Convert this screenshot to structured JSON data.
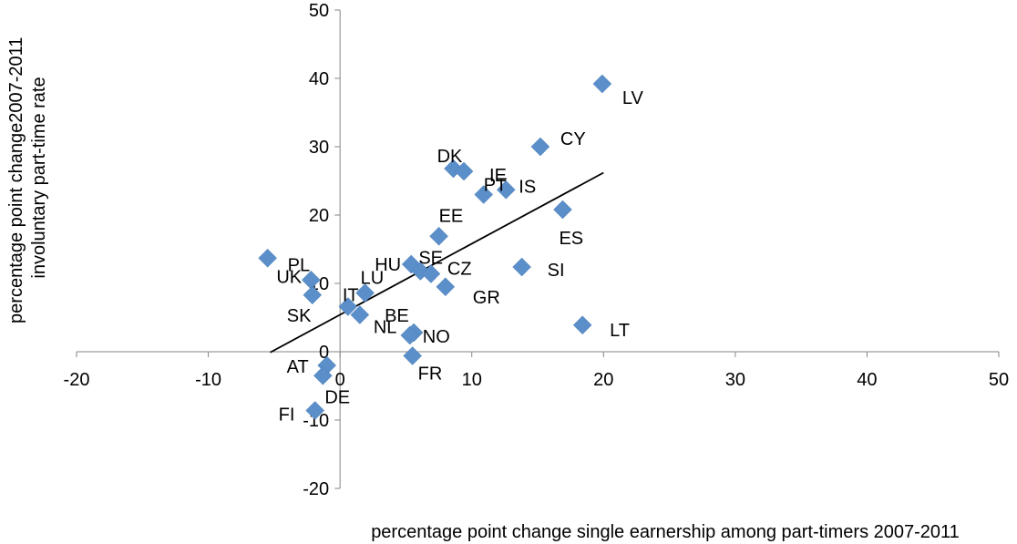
{
  "chart_data": {
    "type": "scatter",
    "title": "",
    "xlabel": "percentage point change single earnership among part-timers 2007-2011",
    "ylabel": [
      "percentage point change2007-2011",
      "involuntary part-time rate"
    ],
    "xlim": [
      -20,
      50
    ],
    "ylim": [
      -20,
      50
    ],
    "xticks": [
      -20,
      -10,
      0,
      10,
      20,
      30,
      40,
      50
    ],
    "yticks": [
      -20,
      -10,
      0,
      10,
      20,
      30,
      40,
      50
    ],
    "marker_color": "#5B8FC9",
    "trendline": {
      "x1": -5.3,
      "y1": -0.1,
      "x2": 20.0,
      "y2": 26.2
    },
    "points": [
      {
        "label": "LV",
        "x": 19.9,
        "y": 39.2
      },
      {
        "label": "CY",
        "x": 15.2,
        "y": 30.0
      },
      {
        "label": "DK",
        "x": 8.6,
        "y": 26.8
      },
      {
        "label": "IE",
        "x": 9.4,
        "y": 26.4
      },
      {
        "label": "PT",
        "x": 10.9,
        "y": 23.0
      },
      {
        "label": "IS",
        "x": 12.6,
        "y": 23.7
      },
      {
        "label": "ES",
        "x": 16.9,
        "y": 20.8
      },
      {
        "label": "EE",
        "x": 7.5,
        "y": 16.9
      },
      {
        "label": "SI",
        "x": 13.8,
        "y": 12.4
      },
      {
        "label": "HU",
        "x": 5.4,
        "y": 12.8
      },
      {
        "label": "SE",
        "x": 6.1,
        "y": 11.8
      },
      {
        "label": "CZ",
        "x": 6.9,
        "y": 11.4
      },
      {
        "label": "GR",
        "x": 8.0,
        "y": 9.5
      },
      {
        "label": "LU",
        "x": 1.9,
        "y": 8.6
      },
      {
        "label": "IT",
        "x": 0.6,
        "y": 6.6
      },
      {
        "label": "NL",
        "x": 1.5,
        "y": 5.4
      },
      {
        "label": "PL",
        "x": -5.5,
        "y": 13.7
      },
      {
        "label": "UK",
        "x": -2.2,
        "y": 10.5
      },
      {
        "label": "SK",
        "x": -2.1,
        "y": 8.3
      },
      {
        "label": "BE",
        "x": 5.6,
        "y": 2.8
      },
      {
        "label": "NO",
        "x": 5.3,
        "y": 2.4
      },
      {
        "label": "LT",
        "x": 18.4,
        "y": 3.9
      },
      {
        "label": "FR",
        "x": 5.5,
        "y": -0.6
      },
      {
        "label": "AT",
        "x": -1.0,
        "y": -2.0
      },
      {
        "label": "DE",
        "x": -1.3,
        "y": -3.5
      },
      {
        "label": "FI",
        "x": -1.9,
        "y": -8.6
      }
    ]
  }
}
